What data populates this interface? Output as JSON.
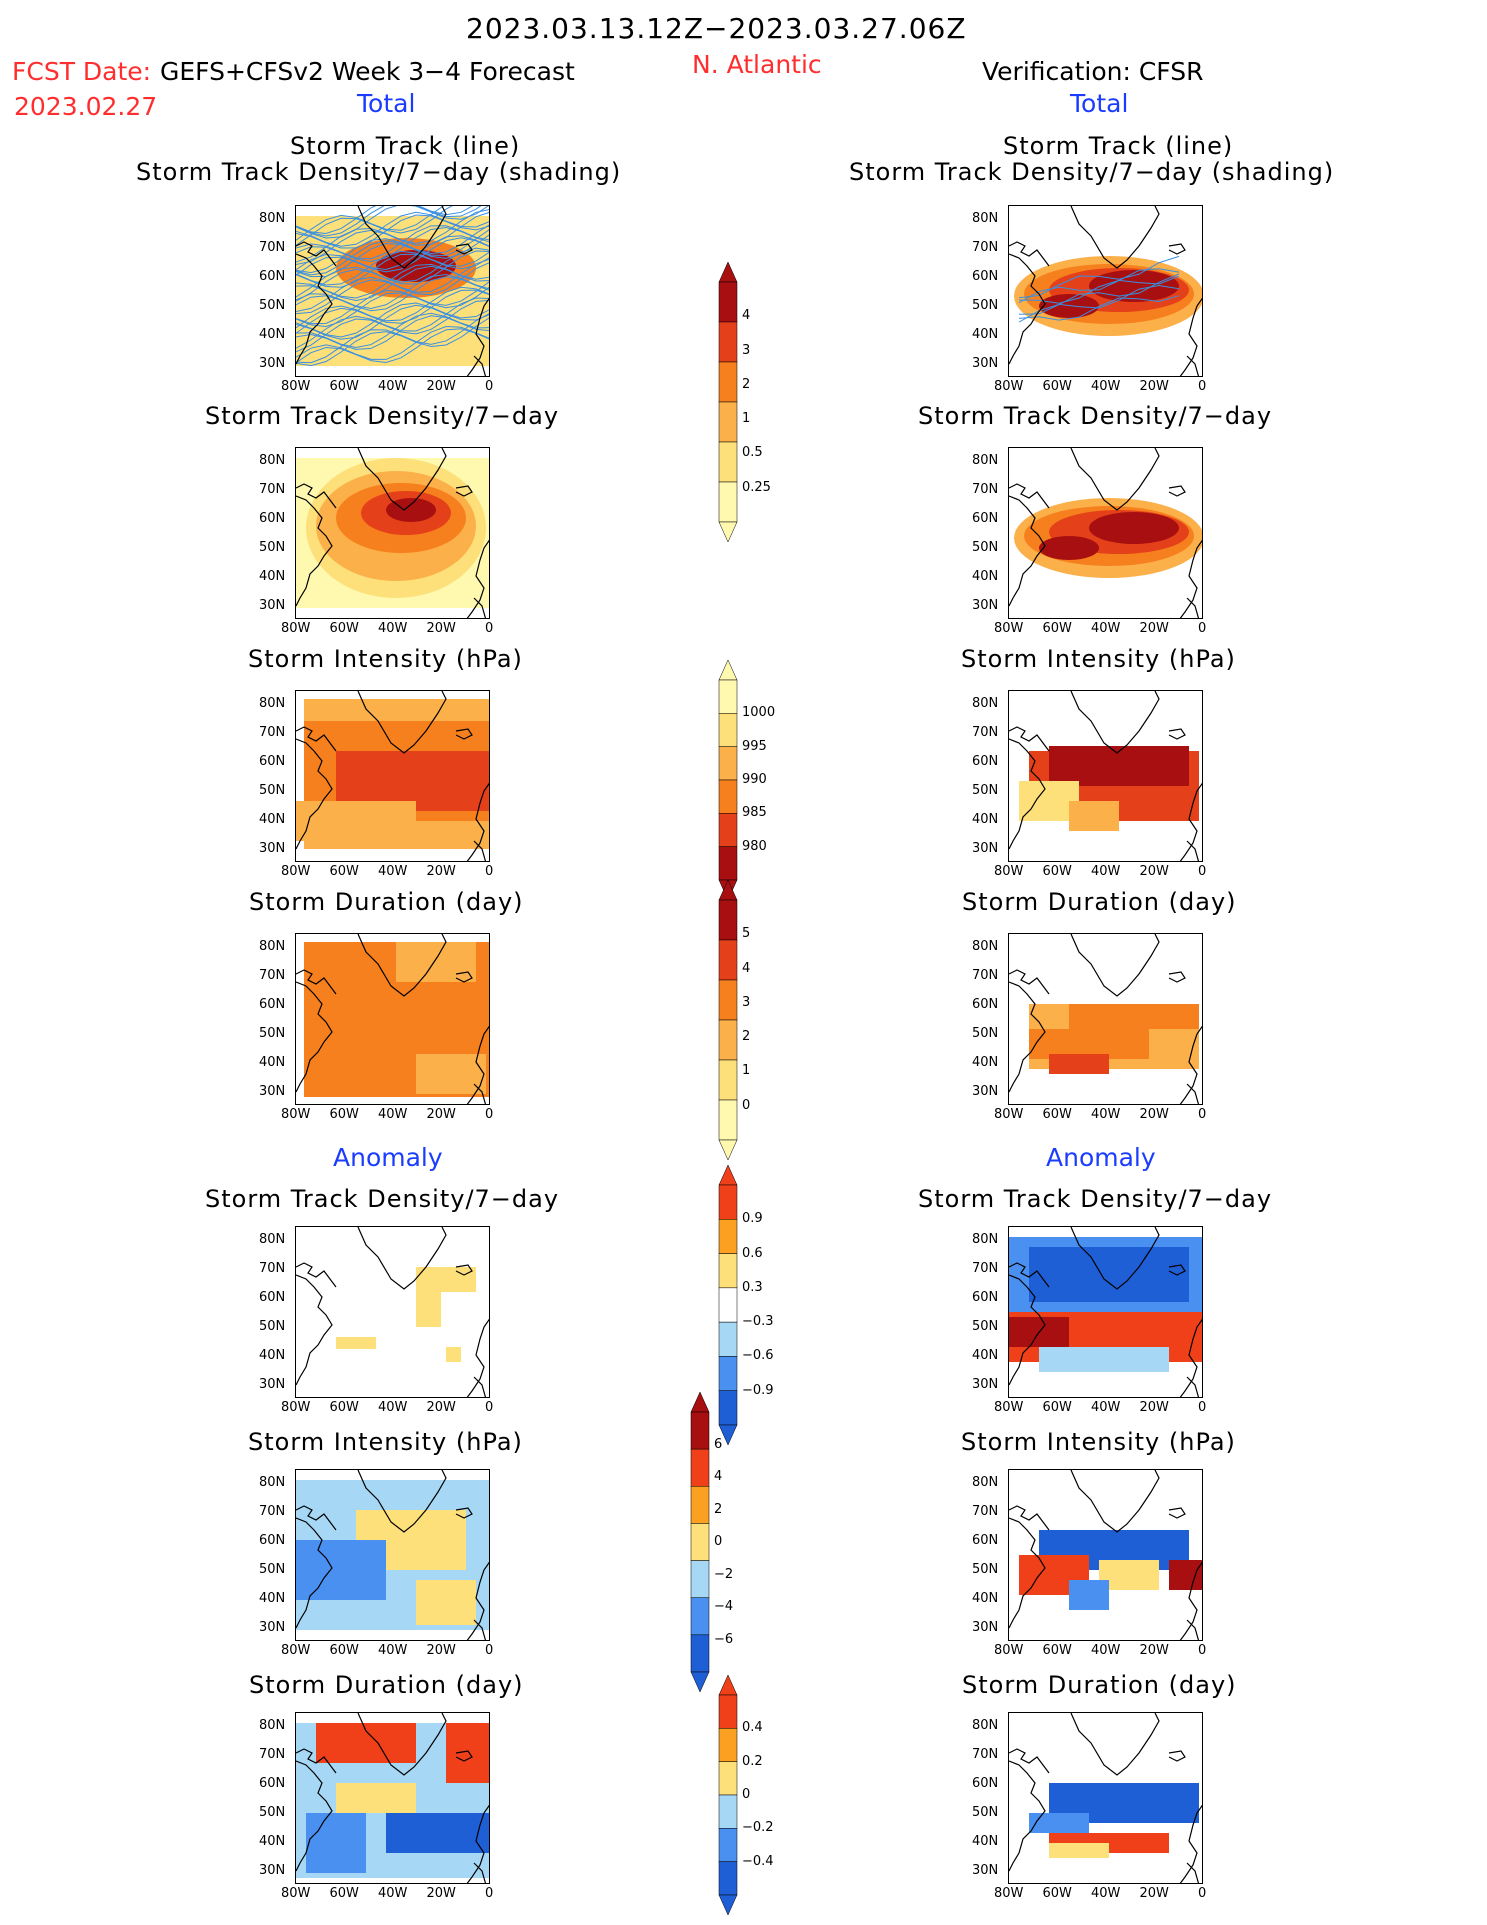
{
  "header": {
    "title": "2023.03.13.12Z−2023.03.27.06Z",
    "fcst_date_label": "FCST Date:",
    "forecast_label": "GEFS+CFSv2 Week 3−4 Forecast",
    "fcst_date_value": "2023.02.27",
    "region": "N. Atlantic",
    "verification": "Verification: CFSR"
  },
  "sections": {
    "total": "Total",
    "anomaly": "Anomaly"
  },
  "panel_titles": {
    "track_line": "Storm Track (line)",
    "track_density_shading": "Storm Track Density/7−day (shading)",
    "track_density": "Storm Track Density/7−day",
    "intensity": "Storm Intensity (hPa)",
    "duration": "Storm Duration (day)"
  },
  "axes": {
    "lat_ticks": [
      "80N",
      "70N",
      "60N",
      "50N",
      "40N",
      "30N"
    ],
    "lon_ticks": [
      "80W",
      "60W",
      "40W",
      "20W",
      "0"
    ]
  },
  "colorbars": {
    "density_total": [
      "4",
      "3",
      "2",
      "1",
      "0.5",
      "0.25"
    ],
    "intensity_total": [
      "1000",
      "995",
      "990",
      "985",
      "980"
    ],
    "duration_total": [
      "5",
      "4",
      "3",
      "2",
      "1",
      "0"
    ],
    "density_anom": [
      "0.9",
      "0.6",
      "0.3",
      "−0.3",
      "−0.6",
      "−0.9"
    ],
    "intensity_anom": [
      "6",
      "4",
      "2",
      "0",
      "−2",
      "−4",
      "−6"
    ],
    "duration_anom": [
      "0.4",
      "0.2",
      "0",
      "−0.2",
      "−0.4"
    ]
  },
  "colors": {
    "warm_scale": [
      "#fff9b0",
      "#fde07a",
      "#fbb04a",
      "#f7801e",
      "#e4401a",
      "#a80f10"
    ],
    "anom_scale": [
      "#1f5fd6",
      "#4a90f0",
      "#a6d8f5",
      "#ffffff",
      "#fde07a",
      "#fba020",
      "#f0401a",
      "#a80f10"
    ],
    "track_line": "#3a8fe0"
  }
}
